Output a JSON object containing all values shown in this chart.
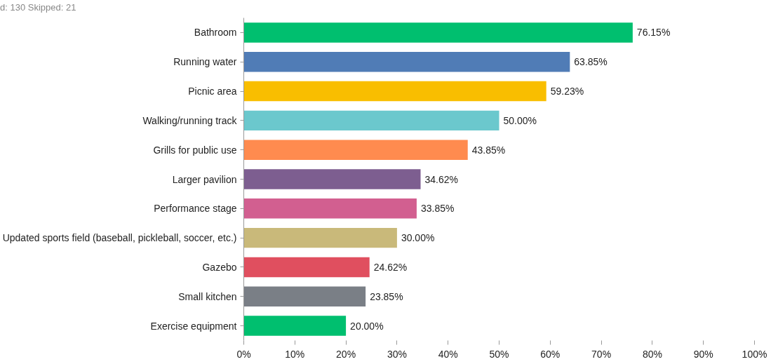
{
  "chart_data": {
    "type": "bar",
    "orientation": "horizontal",
    "categories": [
      "Bathroom",
      "Running water",
      "Picnic area",
      "Walking/running track",
      "Grills for public use",
      "Larger pavilion",
      "Performance stage",
      "Updated sports field (baseball, pickleball, soccer, etc.)",
      "Gazebo",
      "Small kitchen",
      "Exercise equipment"
    ],
    "values": [
      76.15,
      63.85,
      59.23,
      50.0,
      43.85,
      34.62,
      33.85,
      30.0,
      24.62,
      23.85,
      20.0
    ],
    "colors": [
      "#00bf6f",
      "#507cb6",
      "#f9be00",
      "#6bc8cd",
      "#ff8b4f",
      "#7d5e90",
      "#d25f90",
      "#c9b97a",
      "#e04f5f",
      "#7a7f86",
      "#00bf6f"
    ],
    "value_labels": [
      "76.15%",
      "63.85%",
      "59.23%",
      "50.00%",
      "43.85%",
      "34.62%",
      "33.85%",
      "30.00%",
      "24.62%",
      "23.85%",
      "20.00%"
    ],
    "xlim": [
      0,
      100
    ],
    "xticks": [
      {
        "value": 0,
        "label": "0%"
      },
      {
        "value": 10,
        "label": "10%"
      },
      {
        "value": 20,
        "label": "20%"
      },
      {
        "value": 30,
        "label": "30%"
      },
      {
        "value": 40,
        "label": "40%"
      },
      {
        "value": 50,
        "label": "50%"
      },
      {
        "value": 60,
        "label": "60%"
      },
      {
        "value": 70,
        "label": "70%"
      },
      {
        "value": 80,
        "label": "80%"
      },
      {
        "value": 90,
        "label": "90%"
      },
      {
        "value": 100,
        "label": "100%"
      }
    ],
    "grid": false,
    "annotations": [
      "d: 130 Skipped: 21"
    ]
  }
}
